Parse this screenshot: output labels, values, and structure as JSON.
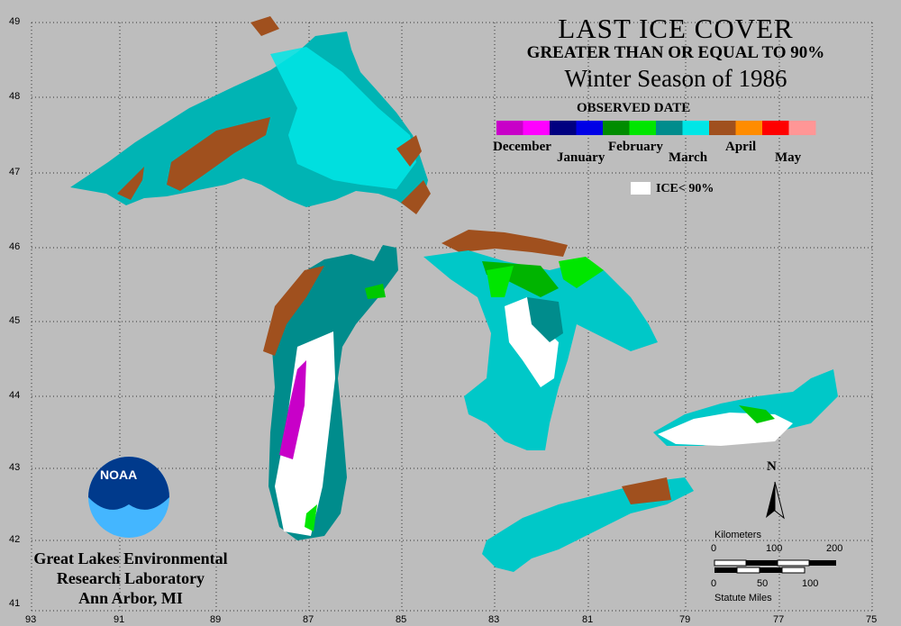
{
  "header": {
    "title": "LAST ICE COVER",
    "subtitle": "GREATER THAN OR EQUAL TO 90%",
    "season": "Winter Season of 1986"
  },
  "legend": {
    "title": "OBSERVED DATE",
    "months": [
      "December",
      "January",
      "February",
      "March",
      "April",
      "May"
    ],
    "colors": [
      "#c800c8",
      "#ff00ff",
      "#000080",
      "#0000e6",
      "#008c00",
      "#00e600",
      "#008c8c",
      "#00e6e6",
      "#a0501e",
      "#ff8c00",
      "#ff0000",
      "#ff9696"
    ],
    "ice_label": "ICE< 90%",
    "ice_color": "#ffffff"
  },
  "axes": {
    "latitudes": [
      "49",
      "48",
      "47",
      "46",
      "45",
      "44",
      "43",
      "42",
      "41"
    ],
    "longitudes": [
      "93",
      "91",
      "89",
      "87",
      "85",
      "83",
      "81",
      "79",
      "77",
      "75"
    ]
  },
  "scale": {
    "km_title": "Kilometers",
    "km_ticks": [
      "0",
      "100",
      "200"
    ],
    "mi_ticks": [
      "0",
      "50",
      "100"
    ],
    "mi_title": "Statute Miles"
  },
  "north": "N",
  "org": {
    "logo_text": "NOAA",
    "line1": "Great Lakes Environmental",
    "line2": "Research Laboratory",
    "line3": "Ann Arbor, MI"
  }
}
